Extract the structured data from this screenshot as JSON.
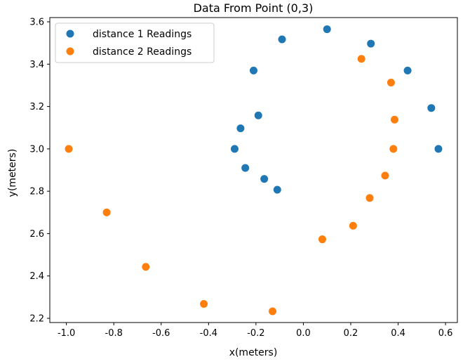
{
  "chart_data": {
    "type": "scatter",
    "title": "Data From Point (0,3)",
    "xlabel": "x(meters)",
    "ylabel": "y(meters)",
    "xlim": [
      -1.07,
      0.65
    ],
    "ylim": [
      2.18,
      3.62
    ],
    "xticks": [
      -1.0,
      -0.8,
      -0.6,
      -0.4,
      -0.2,
      0.0,
      0.2,
      0.4,
      0.6
    ],
    "yticks": [
      2.2,
      2.4,
      2.6,
      2.8,
      3.0,
      3.2,
      3.4,
      3.6
    ],
    "grid": false,
    "legend_position": "top-left",
    "series": [
      {
        "name": "distance 1 Readings",
        "color": "#1f77b4",
        "x": [
          0.1,
          0.285,
          0.44,
          0.54,
          0.57,
          -0.09,
          -0.21,
          -0.19,
          -0.265,
          -0.29,
          -0.245,
          -0.165,
          -0.11
        ],
        "y": [
          3.565,
          3.497,
          3.37,
          3.193,
          3.0,
          3.517,
          3.37,
          3.158,
          3.097,
          3.0,
          2.91,
          2.858,
          2.807
        ]
      },
      {
        "name": "distance 2 Readings",
        "color": "#ff7f0e",
        "x": [
          0.245,
          0.37,
          0.385,
          0.38,
          0.345,
          0.28,
          0.21,
          0.08,
          -0.13,
          -0.42,
          -0.665,
          -0.83,
          -0.99
        ],
        "y": [
          3.425,
          3.313,
          3.138,
          3.0,
          2.874,
          2.768,
          2.637,
          2.573,
          2.233,
          2.268,
          2.443,
          2.7,
          3.0
        ]
      }
    ]
  }
}
